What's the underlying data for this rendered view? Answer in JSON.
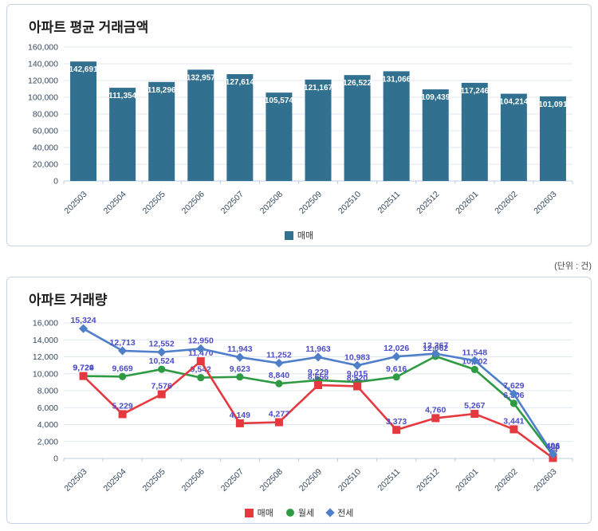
{
  "unit_note": "(단위 : 건)",
  "colors": {
    "bar": "#31708F",
    "sale": "#E6393F",
    "monthly": "#2E9B44",
    "jeonse": "#4F7FC9",
    "data_label": "#4D4DC7",
    "grid": "#DFE7F2",
    "axis_line": "#BCCCE2",
    "axis_text": "#35495F",
    "bar_label": "#FFFFFF"
  },
  "chart_data": [
    {
      "type": "bar",
      "title": "아파트 평균 거래금액",
      "categories": [
        "202503",
        "202504",
        "202505",
        "202506",
        "202507",
        "202508",
        "202509",
        "202510",
        "202511",
        "202512",
        "202601",
        "202602",
        "202603"
      ],
      "series": [
        {
          "name": "매매",
          "marker": "square",
          "color": "#31708F",
          "values": [
            142691,
            111354,
            118296,
            132957,
            127614,
            105574,
            121167,
            126522,
            131066,
            109439,
            117246,
            104214,
            101091
          ]
        }
      ],
      "ylim": [
        0,
        160000
      ],
      "ytick_step": 20000,
      "grid": true,
      "legend_position": "bottom"
    },
    {
      "type": "line",
      "title": "아파트 거래량",
      "categories": [
        "202503",
        "202504",
        "202505",
        "202506",
        "202507",
        "202508",
        "202509",
        "202510",
        "202511",
        "202512",
        "202601",
        "202602",
        "202603"
      ],
      "series": [
        {
          "name": "매매",
          "marker": "square",
          "color": "#E6393F",
          "values": [
            9729,
            5229,
            7576,
            11470,
            4149,
            4277,
            8656,
            8520,
            3373,
            4760,
            5267,
            3441,
            54
          ]
        },
        {
          "name": "월세",
          "marker": "circle",
          "color": "#2E9B44",
          "values": [
            9724,
            9669,
            10524,
            9542,
            9623,
            8840,
            9229,
            9015,
            9616,
            12062,
            10502,
            6506,
            406
          ]
        },
        {
          "name": "전세",
          "marker": "diamond",
          "color": "#4F7FC9",
          "values": [
            15324,
            12713,
            12552,
            12950,
            11943,
            11252,
            11963,
            10983,
            12026,
            12367,
            11548,
            7629,
            496
          ]
        }
      ],
      "ylim": [
        0,
        16000
      ],
      "ytick_step": 2000,
      "grid": true,
      "legend_position": "bottom",
      "draw_order": [
        1,
        0,
        2
      ]
    }
  ]
}
